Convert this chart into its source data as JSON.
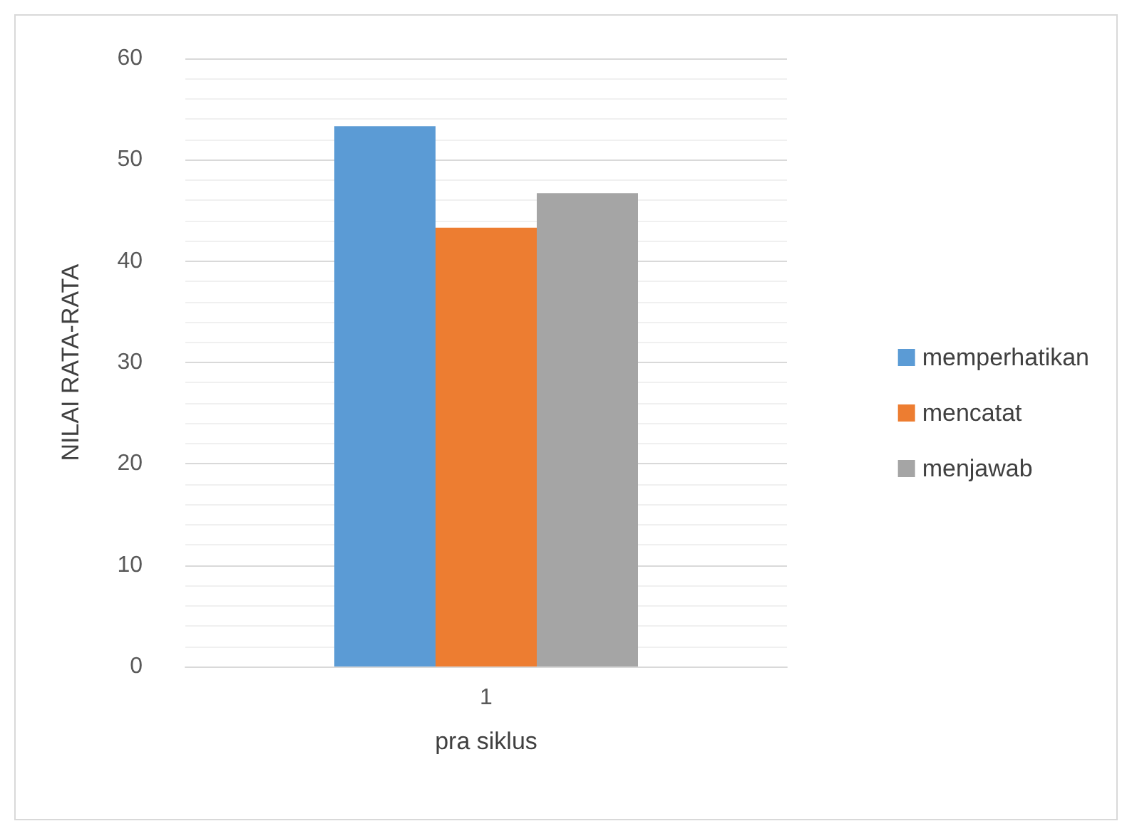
{
  "chart_data": {
    "type": "bar",
    "categories": [
      "1"
    ],
    "xlabel": "pra siklus",
    "ylabel": "NILAI RATA-RATA",
    "series": [
      {
        "name": "memperhatikan",
        "color": "#5b9bd5",
        "values": [
          53.3
        ]
      },
      {
        "name": "mencatat",
        "color": "#ed7d31",
        "values": [
          43.3
        ]
      },
      {
        "name": "menjawab",
        "color": "#a5a5a5",
        "values": [
          46.7
        ]
      }
    ],
    "ylim": [
      0,
      60
    ],
    "yticks": [
      0,
      {
        "value": 2,
        "label": null
      },
      {
        "value": 4,
        "label": null
      },
      {
        "value": 6,
        "label": null
      },
      {
        "value": 8,
        "label": null
      },
      10,
      {
        "value": 12,
        "label": null
      },
      {
        "value": 14,
        "label": null
      },
      {
        "value": 16,
        "label": null
      },
      {
        "value": 18,
        "label": null
      },
      20,
      {
        "value": 22,
        "label": null
      },
      {
        "value": 24,
        "label": null
      },
      {
        "value": 26,
        "label": null
      },
      {
        "value": 28,
        "label": null
      },
      30,
      {
        "value": 32,
        "label": null
      },
      {
        "value": 34,
        "label": null
      },
      {
        "value": 36,
        "label": null
      },
      {
        "value": 38,
        "label": null
      },
      40,
      {
        "value": 42,
        "label": null
      },
      {
        "value": 44,
        "label": null
      },
      {
        "value": 46,
        "label": null
      },
      {
        "value": 48,
        "label": null
      },
      50,
      {
        "value": 52,
        "label": null
      },
      {
        "value": 54,
        "label": null
      },
      {
        "value": 56,
        "label": null
      },
      {
        "value": 58,
        "label": null
      },
      60
    ],
    "grid": true,
    "legend": "right"
  }
}
